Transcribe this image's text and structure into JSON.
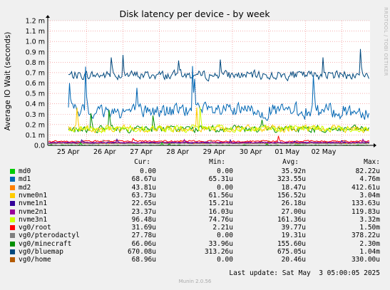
{
  "chart_data": {
    "type": "line",
    "title": "Disk latency per device - by week",
    "ylabel": "Average IO Wait (seconds)",
    "ylim": [
      0,
      1.2
    ],
    "y_ticks": [
      {
        "value": 0.0,
        "label": "0.0"
      },
      {
        "value": 0.1,
        "label": "0.1 m"
      },
      {
        "value": 0.2,
        "label": "0.2 m"
      },
      {
        "value": 0.3,
        "label": "0.3 m"
      },
      {
        "value": 0.4,
        "label": "0.4 m"
      },
      {
        "value": 0.5,
        "label": "0.5 m"
      },
      {
        "value": 0.6,
        "label": "0.6 m"
      },
      {
        "value": 0.7,
        "label": "0.7 m"
      },
      {
        "value": 0.8,
        "label": "0.8 m"
      },
      {
        "value": 0.9,
        "label": "0.9 m"
      },
      {
        "value": 1.0,
        "label": "1.0 m"
      },
      {
        "value": 1.1,
        "label": "1.1 m"
      },
      {
        "value": 1.2,
        "label": "1.2 m"
      }
    ],
    "x_ticks": [
      "25 Apr",
      "26 Apr",
      "27 Apr",
      "28 Apr",
      "29 Apr",
      "30 Apr",
      "01 May",
      "02 May"
    ],
    "grid": true,
    "legend_placement": "bottom",
    "series": [
      {
        "name": "md0",
        "color": "#00cc00",
        "level": 0.0001
      },
      {
        "name": "md1",
        "color": "#0066b3",
        "level": 0.33
      },
      {
        "name": "md2",
        "color": "#ff8000",
        "level": 0.02
      },
      {
        "name": "nvme0n1",
        "color": "#ffcc00",
        "level": 0.16
      },
      {
        "name": "nvme1n1",
        "color": "#330099",
        "level": 0.026
      },
      {
        "name": "nvme2n1",
        "color": "#990099",
        "level": 0.027
      },
      {
        "name": "nvme3n1",
        "color": "#ccff00",
        "level": 0.16
      },
      {
        "name": "vg0/root",
        "color": "#ff0000",
        "level": 0.04
      },
      {
        "name": "vg0/pterodactyl",
        "color": "#808080",
        "level": 0.019
      },
      {
        "name": "vg0/minecraft",
        "color": "#008f00",
        "level": 0.156
      },
      {
        "name": "vg0/bluemap",
        "color": "#00487d",
        "level": 0.675
      },
      {
        "name": "vg0/home",
        "color": "#b35a00",
        "level": 0.02
      }
    ]
  },
  "legend": {
    "headers": {
      "cur": "Cur:",
      "min": "Min:",
      "avg": "Avg:",
      "max": "Max:"
    },
    "rows": [
      {
        "name": "md0",
        "cur": "0.00",
        "min": "0.00",
        "avg": "35.92n",
        "max": "82.22u"
      },
      {
        "name": "md1",
        "cur": "68.67u",
        "min": "65.31u",
        "avg": "323.55u",
        "max": "4.76m"
      },
      {
        "name": "md2",
        "cur": "43.81u",
        "min": "0.00",
        "avg": "18.47u",
        "max": "412.61u"
      },
      {
        "name": "nvme0n1",
        "cur": "63.73u",
        "min": "61.56u",
        "avg": "156.52u",
        "max": "3.04m"
      },
      {
        "name": "nvme1n1",
        "cur": "22.65u",
        "min": "15.21u",
        "avg": "26.18u",
        "max": "133.63u"
      },
      {
        "name": "nvme2n1",
        "cur": "23.37u",
        "min": "16.03u",
        "avg": "27.00u",
        "max": "119.83u"
      },
      {
        "name": "nvme3n1",
        "cur": "96.48u",
        "min": "74.76u",
        "avg": "161.36u",
        "max": "3.32m"
      },
      {
        "name": "vg0/root",
        "cur": "31.69u",
        "min": "2.21u",
        "avg": "39.77u",
        "max": "1.50m"
      },
      {
        "name": "vg0/pterodactyl",
        "cur": "27.78u",
        "min": "0.00",
        "avg": "19.31u",
        "max": "378.22u"
      },
      {
        "name": "vg0/minecraft",
        "cur": "66.06u",
        "min": "33.96u",
        "avg": "155.60u",
        "max": "2.30m"
      },
      {
        "name": "vg0/bluemap",
        "cur": "670.08u",
        "min": "313.26u",
        "avg": "675.05u",
        "max": "1.04m"
      },
      {
        "name": "vg0/home",
        "cur": "68.96u",
        "min": "0.00",
        "avg": "20.46u",
        "max": "330.00u"
      }
    ]
  },
  "footer": {
    "last_update": "Last update: Sat May  3 05:00:05 2025",
    "version": "Munin 2.0.56"
  },
  "credit": "RRDTOOL / TOBI OETIKER"
}
